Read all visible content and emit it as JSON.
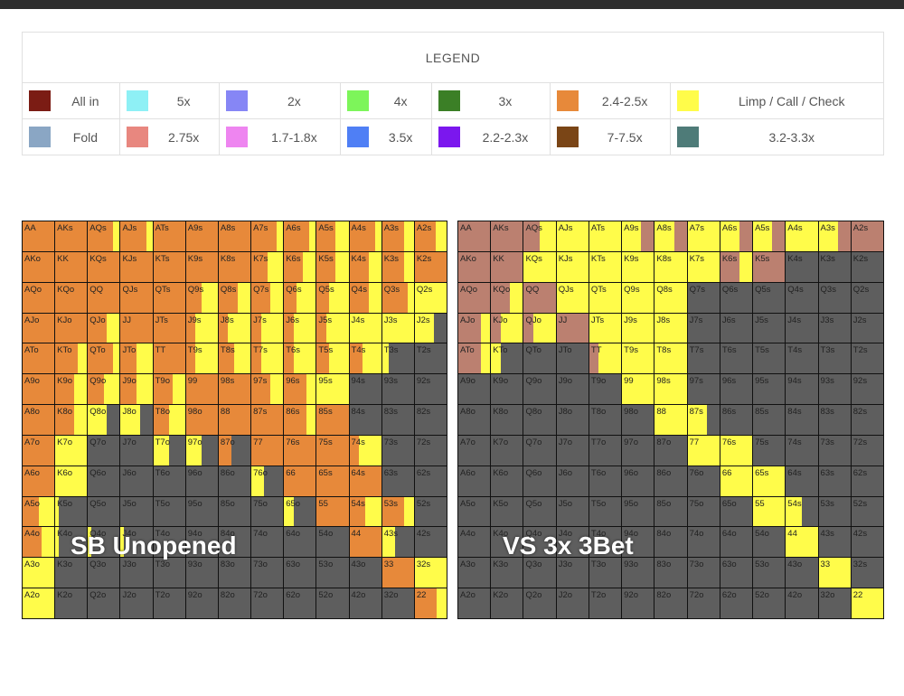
{
  "legend": {
    "title": "LEGEND",
    "rows": [
      [
        {
          "label": "All in",
          "color": "#7b1c14",
          "w": 108
        },
        {
          "label": "5x",
          "color": "#8ef0f5",
          "w": 110
        },
        {
          "label": "2x",
          "color": "#8686f5",
          "w": 135
        },
        {
          "label": "4x",
          "color": "#7df55a",
          "w": 101
        },
        {
          "label": "3x",
          "color": "#3b7f26",
          "w": 131
        },
        {
          "label": "2.4-2.5x",
          "color": "#e7893a",
          "w": 134
        },
        {
          "label": "Limp / Call / Check",
          "color": "#fffc4a",
          "w": 235
        }
      ],
      [
        {
          "label": "Fold",
          "color": "#8aa6c4",
          "w": 108
        },
        {
          "label": "2.75x",
          "color": "#e8877f",
          "w": 110
        },
        {
          "label": "1.7-1.8x",
          "color": "#ee85f0",
          "w": 135
        },
        {
          "label": "3.5x",
          "color": "#4f7ff5",
          "w": 101
        },
        {
          "label": "2.2-2.3x",
          "color": "#7b17ee",
          "w": 131
        },
        {
          "label": "7-7.5x",
          "color": "#7a4516",
          "w": 134
        },
        {
          "label": "3.2-3.3x",
          "color": "#4e7b78",
          "w": 235
        }
      ]
    ]
  },
  "charts": [
    {
      "title": "SB Unopened",
      "hands": [
        [
          "AA",
          "AKs",
          "AQs",
          "AJs",
          "ATs",
          "A9s",
          "A8s",
          "A7s",
          "A6s",
          "A5s",
          "A4s",
          "A3s",
          "A2s"
        ],
        [
          "AKo",
          "KK",
          "KQs",
          "KJs",
          "KTs",
          "K9s",
          "K8s",
          "K7s",
          "K6s",
          "K5s",
          "K4s",
          "K3s",
          "K2s"
        ],
        [
          "AQo",
          "KQo",
          "QQ",
          "QJs",
          "QTs",
          "Q9s",
          "Q8s",
          "Q7s",
          "Q6s",
          "Q5s",
          "Q4s",
          "Q3s",
          "Q2s"
        ],
        [
          "AJo",
          "KJo",
          "QJo",
          "JJ",
          "JTs",
          "J9s",
          "J8s",
          "J7s",
          "J6s",
          "J5s",
          "J4s",
          "J3s",
          "J2s"
        ],
        [
          "ATo",
          "KTo",
          "QTo",
          "JTo",
          "TT",
          "T9s",
          "T8s",
          "T7s",
          "T6s",
          "T5s",
          "T4s",
          "T3s",
          "T2s"
        ],
        [
          "A9o",
          "K9o",
          "Q9o",
          "J9o",
          "T9o",
          "99",
          "98s",
          "97s",
          "96s",
          "95s",
          "94s",
          "93s",
          "92s"
        ],
        [
          "A8o",
          "K8o",
          "Q8o",
          "J8o",
          "T8o",
          "98o",
          "88",
          "87s",
          "86s",
          "85s",
          "84s",
          "83s",
          "82s"
        ],
        [
          "A7o",
          "K7o",
          "Q7o",
          "J7o",
          "T7o",
          "97o",
          "87o",
          "77",
          "76s",
          "75s",
          "74s",
          "73s",
          "72s"
        ],
        [
          "A6o",
          "K6o",
          "Q6o",
          "J6o",
          "T6o",
          "96o",
          "86o",
          "76o",
          "66",
          "65s",
          "64s",
          "63s",
          "62s"
        ],
        [
          "A5o",
          "K5o",
          "Q5o",
          "J5o",
          "T5o",
          "95o",
          "85o",
          "75o",
          "65o",
          "55",
          "54s",
          "53s",
          "52s"
        ],
        [
          "A4o",
          "K4o",
          "Q4o",
          "J4o",
          "T4o",
          "94o",
          "84o",
          "74o",
          "64o",
          "54o",
          "44",
          "43s",
          "42s"
        ],
        [
          "A3o",
          "K3o",
          "Q3o",
          "J3o",
          "T3o",
          "93o",
          "83o",
          "73o",
          "63o",
          "53o",
          "43o",
          "33",
          "32s"
        ],
        [
          "A2o",
          "K2o",
          "Q2o",
          "J2o",
          "T2o",
          "92o",
          "82o",
          "72o",
          "62o",
          "52o",
          "42o",
          "32o",
          "22"
        ]
      ],
      "actions": [
        [
          "O",
          "O",
          "O:80,Y:20",
          "O:80,Y:20",
          "O",
          "O",
          "O",
          "O:80,Y:20",
          "O:80,Y:20",
          "O:60,Y:40",
          "O:80,Y:20",
          "O:70,Y:30",
          "O:65,Y:35"
        ],
        [
          "O",
          "O",
          "O",
          "O",
          "O",
          "O",
          "O",
          "O:50,Y:50",
          "O:60,Y:40",
          "O:60,Y:40",
          "O:60,Y:40",
          "O:70,Y:30",
          "O"
        ],
        [
          "O",
          "O",
          "O",
          "O",
          "O",
          "O:50,Y:50",
          "O:60,Y:40",
          "O:60,Y:40",
          "O:40,Y:60",
          "O:40,Y:60",
          "O:60,Y:40",
          "O:80,Y:20",
          "Y"
        ],
        [
          "O",
          "O",
          "O:60,Y:40",
          "O",
          "O",
          "O:30,Y:70",
          "O:30,Y:70",
          "O:30,Y:70",
          "O:30,Y:70",
          "O:30,Y:70",
          "Y",
          "Y",
          "Y:60,G:40"
        ],
        [
          "O",
          "O:70,Y:30",
          "O:80,Y:20",
          "O:50,Y:50",
          "O",
          "O:30,Y:70",
          "O:50,Y:50",
          "O:30,Y:70",
          "O:30,Y:70",
          "O:40,Y:60",
          "O:40,Y:60",
          "Y:20,G:80",
          "G"
        ],
        [
          "O",
          "O:60,Y:40",
          "O:50,Y:50",
          "O:50,Y:50",
          "O:60,Y:40",
          "O",
          "O",
          "O:60,Y:40",
          "O:70,Y:30",
          "Y",
          "G",
          "G",
          "G"
        ],
        [
          "O",
          "O:60,Y:40",
          "Y:60,G:40",
          "Y:60,G:40",
          "O:50,Y:50",
          "O",
          "O",
          "O",
          "O:70,Y:30",
          "O",
          "G",
          "G",
          "G"
        ],
        [
          "O",
          "Y",
          "G",
          "G",
          "Y:50,G:50",
          "Y:50,G:50",
          "O:40,G:60",
          "O",
          "O",
          "O",
          "O:30,Y:70",
          "G",
          "G"
        ],
        [
          "O",
          "Y",
          "G",
          "G",
          "G",
          "G",
          "G",
          "Y:40,G:60",
          "O",
          "O",
          "O",
          "G",
          "G"
        ],
        [
          "O:50,Y:50",
          "Y:10,G:90",
          "G",
          "G",
          "G",
          "G",
          "G",
          "G",
          "Y:30,G:70",
          "O",
          "O:50,Y:50",
          "O:70,Y:30",
          "G"
        ],
        [
          "O:60,Y:40",
          "Y:10,G:90",
          "Y:10,G:90",
          "Y:10,G:90",
          "G",
          "G",
          "G",
          "G",
          "G",
          "G",
          "O",
          "Y:40,G:60",
          "G"
        ],
        [
          "Y",
          "G",
          "G",
          "G",
          "G",
          "G",
          "G",
          "G",
          "G",
          "G",
          "G",
          "O",
          "Y"
        ],
        [
          "Y",
          "G",
          "G",
          "G",
          "G",
          "G",
          "G",
          "G",
          "G",
          "G",
          "G",
          "G",
          "O:70,Y:30"
        ]
      ]
    },
    {
      "title": "VS 3x 3Bet",
      "hands": [
        [
          "AA",
          "AKs",
          "AQs",
          "AJs",
          "ATs",
          "A9s",
          "A8s",
          "A7s",
          "A6s",
          "A5s",
          "A4s",
          "A3s",
          "A2s"
        ],
        [
          "AKo",
          "KK",
          "KQs",
          "KJs",
          "KTs",
          "K9s",
          "K8s",
          "K7s",
          "K6s",
          "K5s",
          "K4s",
          "K3s",
          "K2s"
        ],
        [
          "AQo",
          "KQo",
          "QQ",
          "QJs",
          "QTs",
          "Q9s",
          "Q8s",
          "Q7s",
          "Q6s",
          "Q5s",
          "Q4s",
          "Q3s",
          "Q2s"
        ],
        [
          "AJo",
          "KJo",
          "QJo",
          "JJ",
          "JTs",
          "J9s",
          "J8s",
          "J7s",
          "J6s",
          "J5s",
          "J4s",
          "J3s",
          "J2s"
        ],
        [
          "ATo",
          "KTo",
          "QTo",
          "JTo",
          "TT",
          "T9s",
          "T8s",
          "T7s",
          "T6s",
          "T5s",
          "T4s",
          "T3s",
          "T2s"
        ],
        [
          "A9o",
          "K9o",
          "Q9o",
          "J9o",
          "T9o",
          "99",
          "98s",
          "97s",
          "96s",
          "95s",
          "94s",
          "93s",
          "92s"
        ],
        [
          "A8o",
          "K8o",
          "Q8o",
          "J8o",
          "T8o",
          "98o",
          "88",
          "87s",
          "86s",
          "85s",
          "84s",
          "83s",
          "82s"
        ],
        [
          "A7o",
          "K7o",
          "Q7o",
          "J7o",
          "T7o",
          "97o",
          "87o",
          "77",
          "76s",
          "75s",
          "74s",
          "73s",
          "72s"
        ],
        [
          "A6o",
          "K6o",
          "Q6o",
          "J6o",
          "T6o",
          "96o",
          "86o",
          "76o",
          "66",
          "65s",
          "64s",
          "63s",
          "62s"
        ],
        [
          "A5o",
          "K5o",
          "Q5o",
          "J5o",
          "T5o",
          "95o",
          "85o",
          "75o",
          "65o",
          "55",
          "54s",
          "53s",
          "52s"
        ],
        [
          "A4o",
          "K4o",
          "Q4o",
          "J4o",
          "T4o",
          "94o",
          "84o",
          "74o",
          "64o",
          "54o",
          "44",
          "43s",
          "42s"
        ],
        [
          "A3o",
          "K3o",
          "Q3o",
          "J3o",
          "T3o",
          "93o",
          "83o",
          "73o",
          "63o",
          "53o",
          "43o",
          "33",
          "32s"
        ],
        [
          "A2o",
          "K2o",
          "Q2o",
          "J2o",
          "T2o",
          "92o",
          "82o",
          "72o",
          "62o",
          "52o",
          "42o",
          "32o",
          "22"
        ]
      ],
      "actions": [
        [
          "B",
          "B",
          "B:50,Y:50",
          "Y",
          "Y",
          "Y:60,B:40",
          "Y:60,B:40",
          "Y",
          "Y:60,B:40",
          "Y:60,B:40",
          "Y",
          "Y:60,B:40",
          "B"
        ],
        [
          "B",
          "B",
          "Y",
          "Y",
          "Y",
          "Y",
          "Y",
          "Y",
          "B:60,Y:40",
          "B",
          "G",
          "G",
          "G"
        ],
        [
          "B",
          "B:60,Y:40",
          "B",
          "Y",
          "Y",
          "Y",
          "Y",
          "G",
          "G",
          "G",
          "G",
          "G",
          "G"
        ],
        [
          "B:70,Y:30",
          "B:30,Y:70",
          "B:30,Y:70",
          "B",
          "Y",
          "Y",
          "Y",
          "G",
          "G",
          "G",
          "G",
          "G",
          "G"
        ],
        [
          "B:70,Y:30",
          "Y:30,G:70",
          "G",
          "G",
          "B:30,Y:70",
          "Y",
          "Y",
          "G",
          "G",
          "G",
          "G",
          "G",
          "G"
        ],
        [
          "G",
          "G",
          "G",
          "G",
          "G",
          "Y",
          "Y",
          "G",
          "G",
          "G",
          "G",
          "G",
          "G"
        ],
        [
          "G",
          "G",
          "G",
          "G",
          "G",
          "G",
          "Y",
          "Y:60,G:40",
          "G",
          "G",
          "G",
          "G",
          "G"
        ],
        [
          "G",
          "G",
          "G",
          "G",
          "G",
          "G",
          "G",
          "Y",
          "Y",
          "G",
          "G",
          "G",
          "G"
        ],
        [
          "G",
          "G",
          "G",
          "G",
          "G",
          "G",
          "G",
          "G",
          "Y",
          "Y",
          "G",
          "G",
          "G"
        ],
        [
          "G",
          "G",
          "G",
          "G",
          "G",
          "G",
          "G",
          "G",
          "G",
          "Y",
          "Y:50,G:50",
          "G",
          "G"
        ],
        [
          "G",
          "G",
          "G",
          "G",
          "G",
          "G",
          "G",
          "G",
          "G",
          "G",
          "Y",
          "G",
          "G"
        ],
        [
          "G",
          "G",
          "G",
          "G",
          "G",
          "G",
          "G",
          "G",
          "G",
          "G",
          "G",
          "Y",
          "G"
        ],
        [
          "G",
          "G",
          "G",
          "G",
          "G",
          "G",
          "G",
          "G",
          "G",
          "G",
          "G",
          "G",
          "Y"
        ]
      ]
    }
  ],
  "action_colors": {
    "O": "#e7893a",
    "Y": "#fffc4a",
    "G": "#5e5e5e",
    "B": "#bb8070"
  }
}
